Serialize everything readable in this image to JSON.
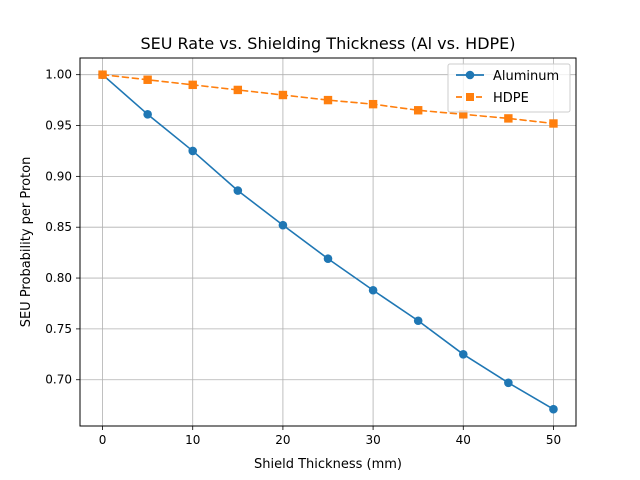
{
  "chart_data": {
    "type": "line",
    "title": "SEU Rate vs. Shielding Thickness (Al vs. HDPE)",
    "xlabel": "Shield Thickness (mm)",
    "ylabel": "SEU Probability per Proton",
    "x": [
      0,
      5,
      10,
      15,
      20,
      25,
      30,
      35,
      40,
      45,
      50
    ],
    "xlim": [
      -2.5,
      52.5
    ],
    "ylim": [
      0.6545,
      1.0164
    ],
    "xticks": [
      0,
      10,
      20,
      30,
      40,
      50
    ],
    "xtick_labels": [
      "0",
      "10",
      "20",
      "30",
      "40",
      "50"
    ],
    "yticks": [
      0.7,
      0.75,
      0.8,
      0.85,
      0.9,
      0.95,
      1.0
    ],
    "ytick_labels": [
      "0.70",
      "0.75",
      "0.80",
      "0.85",
      "0.90",
      "0.95",
      "1.00"
    ],
    "grid": true,
    "legend_position": "top-right",
    "series": [
      {
        "name": "Aluminum",
        "color": "#1f77b4",
        "line_style": "solid",
        "marker": "circle",
        "values": [
          1.0,
          0.961,
          0.925,
          0.886,
          0.852,
          0.819,
          0.788,
          0.758,
          0.725,
          0.697,
          0.671
        ]
      },
      {
        "name": "HDPE",
        "color": "#ff7f0e",
        "line_style": "dashed",
        "marker": "square",
        "values": [
          1.0,
          0.995,
          0.99,
          0.985,
          0.98,
          0.975,
          0.971,
          0.965,
          0.961,
          0.957,
          0.952
        ]
      }
    ]
  }
}
